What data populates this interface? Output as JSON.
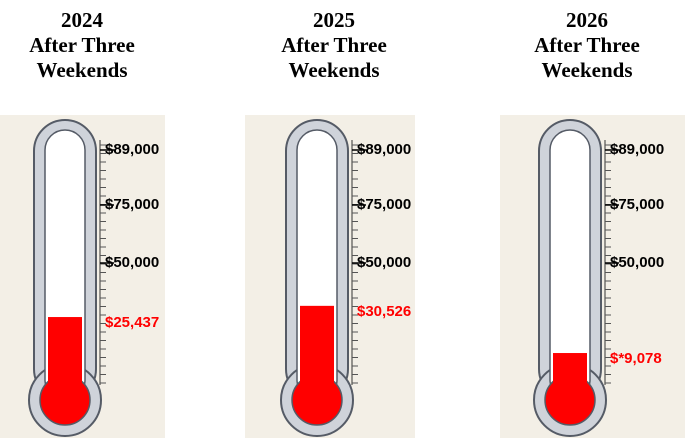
{
  "chart_data": [
    {
      "type": "thermometer",
      "title": "2024",
      "subtitle": "After Three Weekends",
      "values": [
        25437
      ],
      "value_labels": [
        "$25,437"
      ],
      "color": "#ff0000",
      "ylim": [
        0,
        89000
      ],
      "yticks": [
        {
          "value": 50000,
          "label": "$50,000"
        },
        {
          "value": 75000,
          "label": "$75,000"
        },
        {
          "value": 89000,
          "label": "$89,000"
        }
      ]
    },
    {
      "type": "thermometer",
      "title": "2025",
      "subtitle": "After Three Weekends",
      "values": [
        30526
      ],
      "value_labels": [
        "$30,526"
      ],
      "color": "#ff0000",
      "ylim": [
        0,
        89000
      ],
      "yticks": [
        {
          "value": 50000,
          "label": "$50,000"
        },
        {
          "value": 75000,
          "label": "$75,000"
        },
        {
          "value": 89000,
          "label": "$89,000"
        }
      ]
    },
    {
      "type": "thermometer",
      "title": "2026",
      "subtitle": "After Three Weekends",
      "values": [
        9078
      ],
      "value_labels": [
        "$*9,078"
      ],
      "color": "#ff0000",
      "ylim": [
        0,
        89000
      ],
      "yticks": [
        {
          "value": 50000,
          "label": "$50,000"
        },
        {
          "value": 75000,
          "label": "$75,000"
        },
        {
          "value": 89000,
          "label": "$89,000"
        }
      ]
    }
  ]
}
